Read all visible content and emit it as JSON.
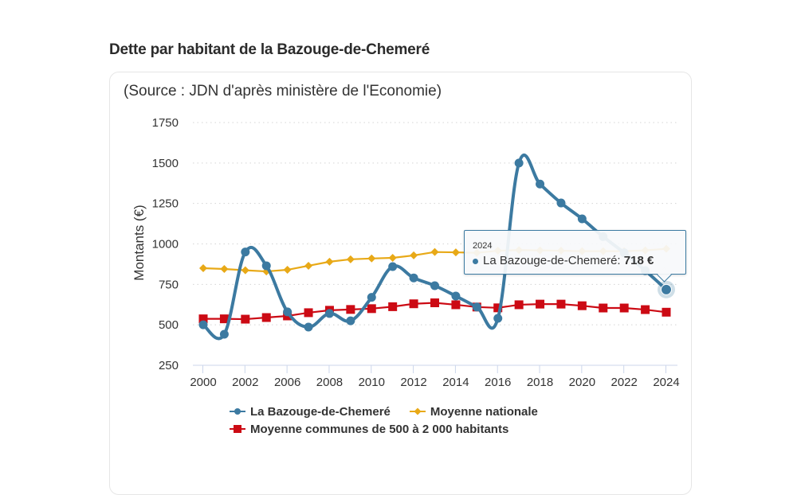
{
  "page": {
    "title": "Dette par habitant de la Bazouge-de-Chemeré",
    "source": "(Source : JDN d'après ministère de l'Economie)"
  },
  "tooltip": {
    "header": "2024",
    "series": "La Bazouge-de-Chemeré: ",
    "value": "718 €",
    "color": "#3c7aa1"
  },
  "chart_data": {
    "type": "line",
    "title": "Dette par habitant de la Bazouge-de-Chemeré",
    "subtitle": "(Source : JDN d'après ministère de l'Economie)",
    "xlabel": "",
    "ylabel": "Montants (€)",
    "ylim": [
      250,
      1750
    ],
    "yticks": [
      250,
      500,
      750,
      1000,
      1250,
      1500,
      1750
    ],
    "grid": true,
    "legend_position": "bottom",
    "categories": [
      "2000",
      "2001",
      "2002",
      "2003",
      "2006",
      "2007",
      "2008",
      "2009",
      "2010",
      "2011",
      "2012",
      "2013",
      "2014",
      "2015",
      "2016",
      "2017",
      "2018",
      "2019",
      "2020",
      "2021",
      "2022",
      "2023",
      "2024"
    ],
    "xtick_labels": [
      "2000",
      "",
      "2002",
      "",
      "2006",
      "",
      "2008",
      "",
      "2010",
      "",
      "2012",
      "",
      "2014",
      "",
      "2016",
      "",
      "2018",
      "",
      "2020",
      "",
      "2022",
      "",
      "2024"
    ],
    "series": [
      {
        "name": "La Bazouge-de-Chemeré",
        "color": "#3c7aa1",
        "marker": "circle",
        "smooth": true,
        "values": [
          500,
          442,
          950,
          865,
          580,
          486,
          570,
          525,
          670,
          860,
          790,
          742,
          678,
          610,
          540,
          1500,
          1370,
          1253,
          1155,
          1045,
          945,
          835,
          718
        ]
      },
      {
        "name": "Moyenne nationale",
        "color": "#e8a917",
        "marker": "diamond",
        "smooth": false,
        "values": [
          850,
          845,
          837,
          830,
          840,
          865,
          890,
          905,
          910,
          914,
          929,
          950,
          948,
          945,
          958,
          962,
          960,
          958,
          955,
          955,
          955,
          960,
          970
        ]
      },
      {
        "name": "Moyenne communes de 500 à 2 000 habitants",
        "color": "#cc0a14",
        "marker": "square",
        "smooth": false,
        "values": [
          537,
          537,
          535,
          545,
          555,
          575,
          590,
          595,
          600,
          612,
          630,
          636,
          624,
          610,
          605,
          624,
          628,
          628,
          618,
          604,
          604,
          594,
          578
        ]
      }
    ],
    "highlighted": {
      "series": "La Bazouge-de-Chemeré",
      "category": "2024",
      "value": 718
    }
  }
}
